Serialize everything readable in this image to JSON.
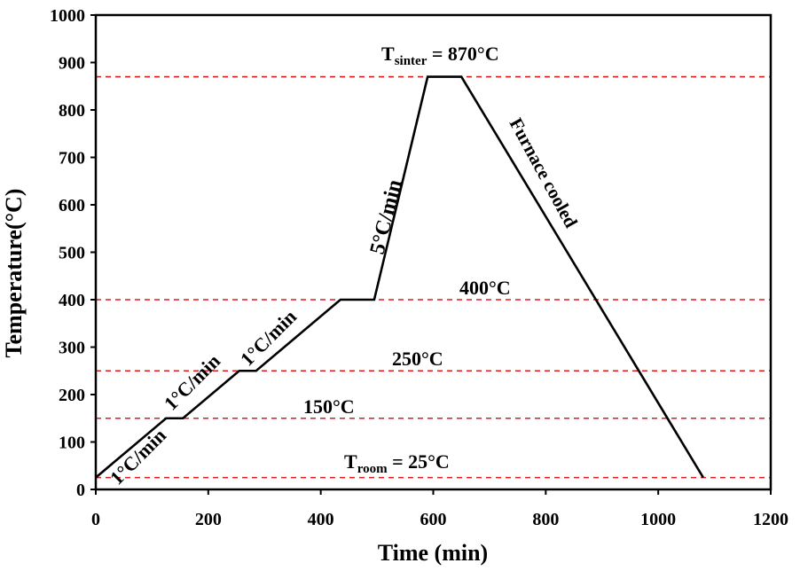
{
  "chart_data": {
    "type": "line",
    "xlabel": "Time (min)",
    "ylabel": "Temperature(°C)",
    "xlim": [
      0,
      1200
    ],
    "ylim": [
      0,
      1000
    ],
    "xticks": [
      "0",
      "200",
      "400",
      "600",
      "800",
      "1000",
      "1200"
    ],
    "yticks": [
      "0",
      "100",
      "200",
      "300",
      "400",
      "500",
      "600",
      "700",
      "800",
      "900",
      "1000"
    ],
    "grid": false,
    "series": [
      {
        "color": "#000000",
        "x": [
          0,
          125,
          155,
          255,
          285,
          435,
          495,
          590,
          650,
          1080
        ],
        "y": [
          25,
          150,
          150,
          250,
          250,
          400,
          400,
          870,
          870,
          25
        ]
      }
    ],
    "reference_lines": [
      {
        "y": 870,
        "color": "#e31a1c"
      },
      {
        "y": 400,
        "color": "#e31a1c"
      },
      {
        "y": 250,
        "color": "#e31a1c"
      },
      {
        "y": 150,
        "color": "#e31a1c"
      },
      {
        "y": 25,
        "color": "#e31a1c"
      }
    ],
    "annotations": {
      "t_sinter": {
        "main": "T",
        "sub": "sinter",
        "value": " = 870°C"
      },
      "t_room": {
        "main": "T",
        "sub": "room",
        "value": " = 25°C"
      },
      "l400": "400°C",
      "l250": "250°C",
      "l150": "150°C",
      "rate_1": "1°C/min",
      "rate_2": "1°C/min",
      "rate_3": "1°C/min",
      "rate_5": "5°C/min",
      "furnace": "Furnace cooled"
    }
  }
}
